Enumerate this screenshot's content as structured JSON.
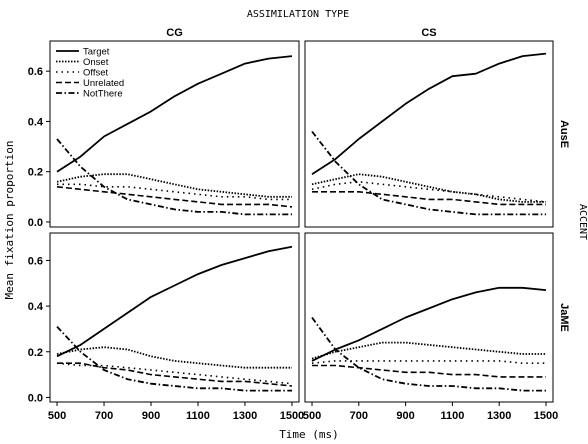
{
  "chart_data": {
    "type": "line",
    "title": "ASSIMILATION TYPE",
    "facet_label": "ACCENT",
    "xlabel": "Time (ms)",
    "ylabel": "Mean fixation proportion",
    "columns": [
      "CG",
      "CS"
    ],
    "rows": [
      "AusE",
      "JaME"
    ],
    "xlim": [
      470,
      1530
    ],
    "ylim": [
      -0.02,
      0.72
    ],
    "x_ticks": [
      500,
      700,
      900,
      1100,
      1300,
      1500
    ],
    "y_ticks": [
      0.0,
      0.2,
      0.4,
      0.6
    ],
    "y_tick_labels": [
      "0.0",
      "0.2",
      "0.4",
      "0.6"
    ],
    "x": [
      500,
      600,
      700,
      800,
      900,
      1000,
      1100,
      1200,
      1300,
      1400,
      1500
    ],
    "legend": {
      "placement": "top-left of CG/AusE panel",
      "entries": [
        "Target",
        "Onset",
        "Offset",
        "Unrelated",
        "NotThere"
      ]
    },
    "panels": [
      {
        "column": "CG",
        "row": "AusE",
        "series": [
          {
            "name": "Target",
            "values": [
              0.2,
              0.26,
              0.34,
              0.39,
              0.44,
              0.5,
              0.55,
              0.59,
              0.63,
              0.65,
              0.66
            ]
          },
          {
            "name": "Onset",
            "values": [
              0.16,
              0.18,
              0.19,
              0.19,
              0.17,
              0.15,
              0.13,
              0.12,
              0.11,
              0.1,
              0.1
            ]
          },
          {
            "name": "Offset",
            "values": [
              0.15,
              0.15,
              0.14,
              0.14,
              0.13,
              0.12,
              0.11,
              0.1,
              0.1,
              0.09,
              0.09
            ]
          },
          {
            "name": "Unrelated",
            "values": [
              0.14,
              0.13,
              0.12,
              0.11,
              0.1,
              0.09,
              0.08,
              0.07,
              0.07,
              0.07,
              0.06
            ]
          },
          {
            "name": "NotThere",
            "values": [
              0.33,
              0.22,
              0.14,
              0.09,
              0.07,
              0.05,
              0.04,
              0.04,
              0.03,
              0.03,
              0.03
            ]
          }
        ]
      },
      {
        "column": "CS",
        "row": "AusE",
        "series": [
          {
            "name": "Target",
            "values": [
              0.19,
              0.25,
              0.33,
              0.4,
              0.47,
              0.53,
              0.58,
              0.59,
              0.63,
              0.66,
              0.67
            ]
          },
          {
            "name": "Onset",
            "values": [
              0.15,
              0.17,
              0.19,
              0.18,
              0.16,
              0.14,
              0.12,
              0.11,
              0.09,
              0.08,
              0.08
            ]
          },
          {
            "name": "Offset",
            "values": [
              0.13,
              0.15,
              0.16,
              0.15,
              0.14,
              0.13,
              0.12,
              0.11,
              0.1,
              0.09,
              0.08
            ]
          },
          {
            "name": "Unrelated",
            "values": [
              0.12,
              0.12,
              0.12,
              0.11,
              0.1,
              0.09,
              0.09,
              0.08,
              0.07,
              0.07,
              0.07
            ]
          },
          {
            "name": "NotThere",
            "values": [
              0.36,
              0.24,
              0.15,
              0.09,
              0.07,
              0.05,
              0.04,
              0.03,
              0.03,
              0.03,
              0.03
            ]
          }
        ]
      },
      {
        "column": "CG",
        "row": "JaME",
        "series": [
          {
            "name": "Target",
            "values": [
              0.18,
              0.23,
              0.3,
              0.37,
              0.44,
              0.49,
              0.54,
              0.58,
              0.61,
              0.64,
              0.66
            ]
          },
          {
            "name": "Onset",
            "values": [
              0.19,
              0.21,
              0.22,
              0.21,
              0.18,
              0.16,
              0.15,
              0.14,
              0.13,
              0.13,
              0.13
            ]
          },
          {
            "name": "Offset",
            "values": [
              0.15,
              0.14,
              0.14,
              0.13,
              0.12,
              0.11,
              0.1,
              0.09,
              0.08,
              0.07,
              0.06
            ]
          },
          {
            "name": "Unrelated",
            "values": [
              0.15,
              0.15,
              0.13,
              0.12,
              0.1,
              0.09,
              0.08,
              0.07,
              0.07,
              0.06,
              0.05
            ]
          },
          {
            "name": "NotThere",
            "values": [
              0.31,
              0.2,
              0.12,
              0.08,
              0.06,
              0.05,
              0.04,
              0.04,
              0.03,
              0.03,
              0.03
            ]
          }
        ]
      },
      {
        "column": "CS",
        "row": "JaME",
        "series": [
          {
            "name": "Target",
            "values": [
              0.16,
              0.21,
              0.25,
              0.3,
              0.35,
              0.39,
              0.43,
              0.46,
              0.48,
              0.48,
              0.47
            ]
          },
          {
            "name": "Onset",
            "values": [
              0.17,
              0.2,
              0.22,
              0.24,
              0.24,
              0.23,
              0.22,
              0.21,
              0.2,
              0.19,
              0.19
            ]
          },
          {
            "name": "Offset",
            "values": [
              0.15,
              0.16,
              0.16,
              0.16,
              0.16,
              0.16,
              0.16,
              0.16,
              0.16,
              0.15,
              0.15
            ]
          },
          {
            "name": "Unrelated",
            "values": [
              0.14,
              0.14,
              0.13,
              0.12,
              0.11,
              0.11,
              0.1,
              0.1,
              0.09,
              0.09,
              0.09
            ]
          },
          {
            "name": "NotThere",
            "values": [
              0.35,
              0.21,
              0.13,
              0.08,
              0.06,
              0.05,
              0.05,
              0.04,
              0.04,
              0.03,
              0.03
            ]
          }
        ]
      }
    ]
  }
}
